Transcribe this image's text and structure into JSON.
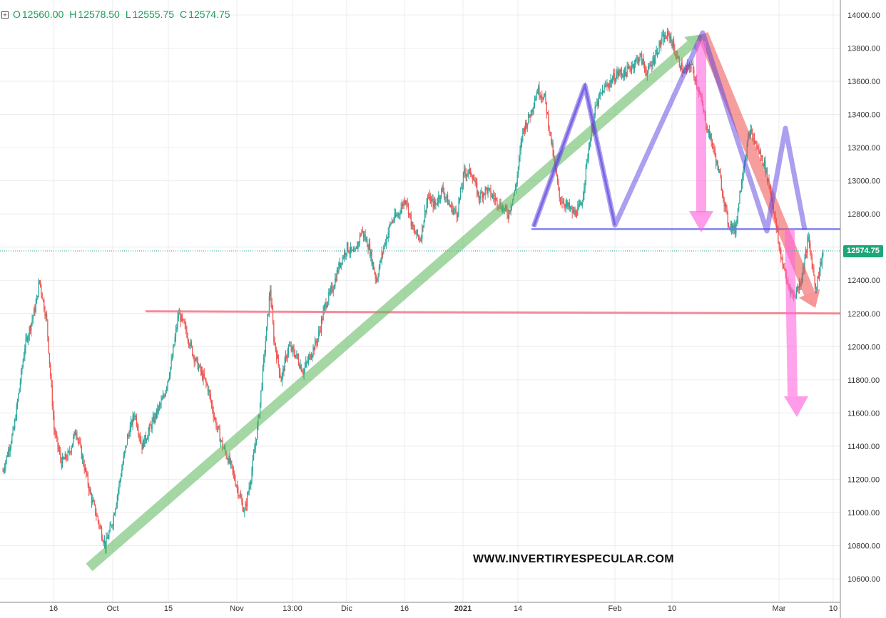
{
  "header": {
    "open_key": "O",
    "open_val": "12560.00",
    "high_key": "H",
    "high_val": "12578.50",
    "low_key": "L",
    "low_val": "12555.75",
    "close_key": "C",
    "close_val": "12574.75"
  },
  "watermark": "WWW.INVERTIRYESPECULAR.COM",
  "last_price_label": "12574.75",
  "colors": {
    "up": "#26a69a",
    "down": "#ef5350",
    "trend_up": "#5cb85c",
    "trend_down": "#f05050",
    "pattern": "#5a3fe0",
    "neckline": "#7a7af0",
    "support": "#f07080",
    "target": "#ff66dd",
    "price_tag": "#1da779",
    "grid": "#ececec"
  },
  "chart_data": {
    "type": "candlestick",
    "title": "",
    "ylim": [
      10500,
      14050
    ],
    "yticks": [
      10600,
      10800,
      11000,
      11200,
      11400,
      11600,
      11800,
      12000,
      12200,
      12400,
      12600,
      12800,
      13000,
      13200,
      13400,
      13600,
      13800,
      14000
    ],
    "ytick_labels": [
      "10600.00",
      "10800.00",
      "11000.00",
      "11200.00",
      "11400.00",
      "11600.00",
      "11800.00",
      "12000.00",
      "12200.00",
      "12400.00",
      "",
      "12800.00",
      "13000.00",
      "13200.00",
      "13400.00",
      "13600.00",
      "13800.00",
      "14000.00"
    ],
    "xticks": [
      "16",
      "Oct",
      "15",
      "Nov",
      "13:00",
      "Dic",
      "16",
      "2021",
      "14",
      "Feb",
      "10",
      "Mar",
      "10"
    ],
    "last_price": 12574.75,
    "price_path": [
      [
        0,
        11250
      ],
      [
        3,
        11500
      ],
      [
        6,
        12000
      ],
      [
        9,
        12250
      ],
      [
        10,
        12400
      ],
      [
        12,
        12150
      ],
      [
        14,
        11500
      ],
      [
        16,
        11300
      ],
      [
        18,
        11350
      ],
      [
        20,
        11500
      ],
      [
        22,
        11300
      ],
      [
        24,
        11100
      ],
      [
        26,
        10950
      ],
      [
        28,
        10800
      ],
      [
        30,
        10950
      ],
      [
        32,
        11200
      ],
      [
        34,
        11450
      ],
      [
        36,
        11600
      ],
      [
        38,
        11400
      ],
      [
        40,
        11500
      ],
      [
        42,
        11600
      ],
      [
        44,
        11700
      ],
      [
        46,
        11900
      ],
      [
        48,
        12200
      ],
      [
        50,
        12100
      ],
      [
        52,
        11950
      ],
      [
        54,
        11850
      ],
      [
        56,
        11750
      ],
      [
        58,
        11550
      ],
      [
        60,
        11400
      ],
      [
        62,
        11300
      ],
      [
        64,
        11150
      ],
      [
        66,
        11000
      ],
      [
        68,
        11250
      ],
      [
        70,
        11600
      ],
      [
        72,
        12100
      ],
      [
        73,
        12350
      ],
      [
        74,
        12050
      ],
      [
        76,
        11800
      ],
      [
        78,
        12000
      ],
      [
        80,
        11950
      ],
      [
        82,
        11850
      ],
      [
        84,
        11950
      ],
      [
        86,
        12050
      ],
      [
        88,
        12250
      ],
      [
        90,
        12350
      ],
      [
        92,
        12500
      ],
      [
        94,
        12600
      ],
      [
        96,
        12550
      ],
      [
        98,
        12700
      ],
      [
        100,
        12600
      ],
      [
        102,
        12400
      ],
      [
        104,
        12600
      ],
      [
        106,
        12750
      ],
      [
        108,
        12800
      ],
      [
        110,
        12900
      ],
      [
        112,
        12700
      ],
      [
        114,
        12650
      ],
      [
        116,
        12900
      ],
      [
        118,
        12850
      ],
      [
        120,
        12950
      ],
      [
        122,
        12850
      ],
      [
        124,
        12800
      ],
      [
        126,
        13050
      ],
      [
        128,
        13050
      ],
      [
        130,
        12900
      ],
      [
        132,
        12950
      ],
      [
        134,
        12900
      ],
      [
        136,
        12850
      ],
      [
        138,
        12800
      ],
      [
        140,
        12950
      ],
      [
        142,
        13300
      ],
      [
        144,
        13400
      ],
      [
        146,
        13550
      ],
      [
        148,
        13500
      ],
      [
        150,
        13200
      ],
      [
        152,
        12900
      ],
      [
        154,
        12850
      ],
      [
        156,
        12800
      ],
      [
        158,
        12850
      ],
      [
        160,
        13200
      ],
      [
        162,
        13450
      ],
      [
        164,
        13550
      ],
      [
        166,
        13600
      ],
      [
        168,
        13650
      ],
      [
        170,
        13650
      ],
      [
        172,
        13700
      ],
      [
        174,
        13750
      ],
      [
        176,
        13650
      ],
      [
        178,
        13750
      ],
      [
        180,
        13850
      ],
      [
        182,
        13880
      ],
      [
        184,
        13750
      ],
      [
        186,
        13650
      ],
      [
        188,
        13700
      ],
      [
        190,
        13550
      ],
      [
        192,
        13350
      ],
      [
        194,
        13200
      ],
      [
        196,
        13000
      ],
      [
        198,
        12750
      ],
      [
        200,
        12700
      ],
      [
        202,
        13050
      ],
      [
        204,
        13300
      ],
      [
        206,
        13200
      ],
      [
        208,
        13100
      ],
      [
        210,
        12900
      ],
      [
        212,
        12600
      ],
      [
        214,
        12400
      ],
      [
        216,
        12300
      ],
      [
        218,
        12400
      ],
      [
        220,
        12650
      ],
      [
        222,
        12350
      ],
      [
        224,
        12574.75
      ]
    ],
    "annotations": {
      "support_line": {
        "price": 12200
      },
      "neckline": {
        "price": 12700
      },
      "uptrend": {
        "from": [
          14,
          10650
        ],
        "to": [
          176,
          13850
        ]
      },
      "downtrend": {
        "from": [
          182,
          13880
        ],
        "to": [
          222,
          12210
        ]
      },
      "pattern": [
        [
          148,
          12750
        ],
        [
          160,
          13550
        ],
        [
          172,
          12750
        ],
        [
          188,
          13880
        ],
        [
          204,
          12700
        ],
        [
          212,
          13300
        ],
        [
          220,
          12700
        ]
      ],
      "targets": [
        {
          "from": [
            188,
            13880
          ],
          "to": [
            188,
            12700
          ]
        },
        {
          "from": [
            215,
            12700
          ],
          "to": [
            218,
            11600
          ]
        }
      ]
    }
  }
}
